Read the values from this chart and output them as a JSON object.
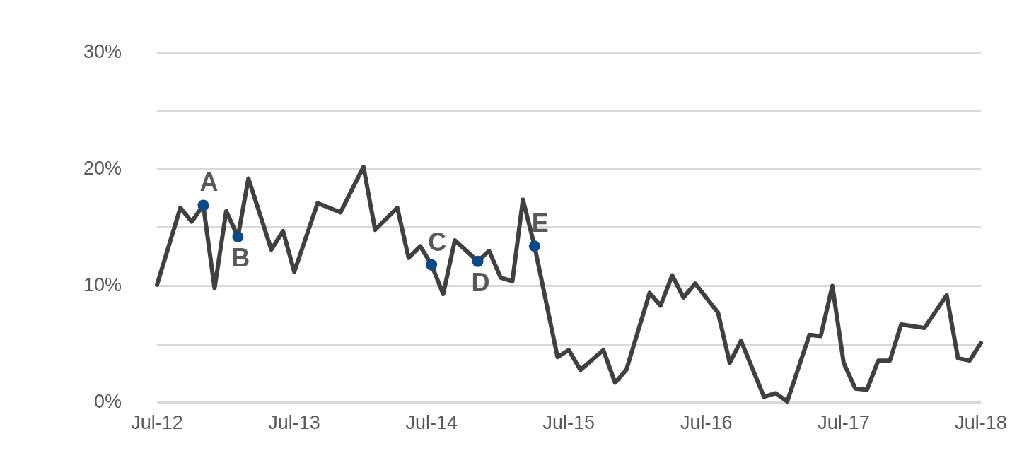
{
  "chart_data": {
    "type": "line",
    "xlim": [
      "2012-07",
      "2018-07"
    ],
    "ylim": [
      0,
      30
    ],
    "xticks": [
      {
        "value": "2012-07",
        "label": "Jul-12"
      },
      {
        "value": "2013-07",
        "label": "Jul-13"
      },
      {
        "value": "2014-07",
        "label": "Jul-14"
      },
      {
        "value": "2015-07",
        "label": "Jul-15"
      },
      {
        "value": "2016-07",
        "label": "Jul-16"
      },
      {
        "value": "2017-07",
        "label": "Jul-17"
      },
      {
        "value": "2018-07",
        "label": "Jul-18"
      }
    ],
    "yticks": [
      {
        "value": 0,
        "label": "0%"
      },
      {
        "value": 5,
        "label": null
      },
      {
        "value": 10,
        "label": "10%"
      },
      {
        "value": 15,
        "label": null
      },
      {
        "value": 20,
        "label": "20%"
      },
      {
        "value": 25,
        "label": null
      },
      {
        "value": 30,
        "label": "30%"
      }
    ],
    "grid": "y",
    "legend": false,
    "marker": "none",
    "line_style": "solid",
    "series": [
      {
        "type": "line",
        "color": "#404040",
        "x": [
          "2012-07",
          "2012-09",
          "2012-10",
          "2012-11",
          "2012-12",
          "2013-01",
          "2013-02",
          "2013-03",
          "2013-05",
          "2013-06",
          "2013-07",
          "2013-09",
          "2013-11",
          "2014-01",
          "2014-02",
          "2014-04",
          "2014-05",
          "2014-06",
          "2014-07",
          "2014-08",
          "2014-09",
          "2014-11",
          "2014-12",
          "2015-01",
          "2015-02",
          "2015-03",
          "2015-04",
          "2015-06",
          "2015-07",
          "2015-08",
          "2015-10",
          "2015-11",
          "2015-12",
          "2016-02",
          "2016-03",
          "2016-04",
          "2016-05",
          "2016-06",
          "2016-08",
          "2016-09",
          "2016-10",
          "2016-12",
          "2017-01",
          "2017-02",
          "2017-04",
          "2017-05",
          "2017-06",
          "2017-07",
          "2017-08",
          "2017-09",
          "2017-10",
          "2017-11",
          "2017-12",
          "2018-02",
          "2018-04",
          "2018-05",
          "2018-06",
          "2018-07"
        ],
        "values": [
          10.1,
          16.7,
          15.5,
          16.9,
          9.8,
          16.4,
          14.2,
          19.2,
          13.1,
          14.7,
          11.2,
          17.1,
          16.3,
          20.2,
          14.8,
          16.7,
          12.4,
          13.4,
          11.8,
          9.3,
          13.9,
          12.1,
          13.0,
          10.7,
          10.4,
          17.4,
          13.4,
          3.9,
          4.5,
          2.8,
          4.5,
          1.7,
          2.8,
          9.4,
          8.3,
          10.9,
          9.0,
          10.2,
          7.7,
          3.4,
          5.3,
          0.5,
          0.8,
          0.1,
          5.8,
          5.7,
          10.0,
          3.4,
          1.2,
          1.1,
          3.6,
          3.6,
          6.7,
          6.4,
          9.2,
          3.8,
          3.6,
          5.1
        ]
      },
      {
        "type": "scatter",
        "color": "#0b4a86",
        "marker": "circle",
        "x": [
          "2012-11",
          "2013-02",
          "2014-07",
          "2014-11",
          "2015-04"
        ],
        "values": [
          16.9,
          14.2,
          11.8,
          12.1,
          13.4
        ]
      }
    ],
    "annotations": [
      {
        "text": "A",
        "x": "2012-11",
        "y": 16.9
      },
      {
        "text": "B",
        "x": "2013-02",
        "y": 14.2
      },
      {
        "text": "C",
        "x": "2014-07",
        "y": 11.8
      },
      {
        "text": "D",
        "x": "2014-11",
        "y": 12.1
      },
      {
        "text": "E",
        "x": "2015-04",
        "y": 13.4
      }
    ]
  }
}
